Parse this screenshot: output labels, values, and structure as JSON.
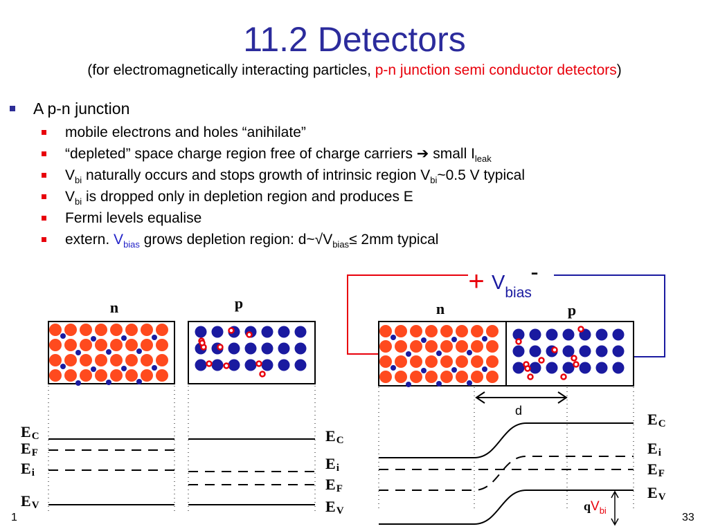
{
  "slide": {
    "title": "11.2 Detectors",
    "subtitle_prefix": "(for electromagnetically interacting particles, ",
    "subtitle_highlight": "p-n junction semi conductor detectors",
    "subtitle_suffix": ")",
    "bullet": "A p-n junction",
    "sub_items": [
      {
        "text": "mobile electrons and holes “anihilate”"
      },
      {
        "text_a": "“depleted” space charge region free of charge carriers ",
        "arrow": "➔",
        "text_b": " small I",
        "sub": "leak"
      },
      {
        "text_a": "V",
        "sub": "bi",
        "text_b": " naturally occurs and stops growth of intrinsic region V",
        "sub2": "bi",
        "text_c": "~0.5 V typical"
      },
      {
        "text_a": "V",
        "sub": "bi",
        "text_b": " is dropped only in depletion region and produces E"
      },
      {
        "text": "Fermi levels equalise"
      },
      {
        "text_a": "extern. ",
        "v": "V",
        "vsub": "bias",
        "text_b": " grows depletion region: d~√V",
        "sub": "bias",
        "text_c": "≤ 2mm typical"
      }
    ],
    "page_left": "1",
    "page_right": "33"
  },
  "diagram": {
    "n_label": "n",
    "p_label": "p",
    "plus": "+",
    "minus": "-",
    "vbias_v": "V",
    "vbias_sub": "bias",
    "d_label": "d",
    "qv_q": "q",
    "qv_v": "V",
    "qv_sub": "bi",
    "E": "E",
    "sub_c": "C",
    "sub_f": "F",
    "sub_i": "i",
    "sub_v": "V"
  },
  "colors": {
    "title": "#2b2b9c",
    "highlight": "#e8000b",
    "electron_blue": "#1a1aa0",
    "atom_orange": "#ff4a1e",
    "wire_red": "#e8000b",
    "wire_blue": "#1a1aa0"
  }
}
